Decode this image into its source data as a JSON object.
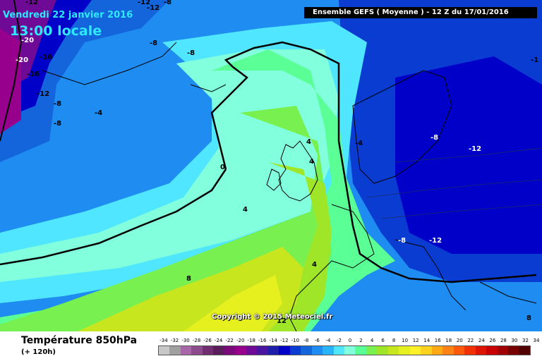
{
  "header": {
    "date": "Vendredi 22 janvier 2016",
    "time": "13:00 locale",
    "run": "Ensemble GEFS  ( Moyenne )  -  12 Z du 17/01/2016"
  },
  "footer": {
    "field": "Température 850hPa",
    "lead": "(+ 120h)"
  },
  "copyright": "Copyright © 2015 Meteociel.fr",
  "legend": {
    "labels": [
      "-34",
      "-32",
      "-30",
      "-28",
      "-26",
      "-24",
      "-22",
      "-20",
      "-18",
      "-16",
      "-14",
      "-12",
      "-10",
      "-8",
      "-6",
      "-4",
      "-2",
      "0",
      "2",
      "4",
      "6",
      "8",
      "10",
      "12",
      "14",
      "16",
      "18",
      "20",
      "22",
      "24",
      "26",
      "28",
      "30",
      "32",
      "34"
    ],
    "colors": [
      "#c8c8c8",
      "#a0a0a0",
      "#a868a8",
      "#8c4c8c",
      "#702e70",
      "#5a1e5a",
      "#7a0a7a",
      "#96008c",
      "#6e0a96",
      "#4b14a0",
      "#1e1eaa",
      "#0000c8",
      "#0a3cd2",
      "#1464dc",
      "#1e8cf0",
      "#28b4fa",
      "#50e6ff",
      "#82ffdc",
      "#5aff96",
      "#78f050",
      "#a0e628",
      "#c8e61e",
      "#e6f01e",
      "#fff028",
      "#ffd21e",
      "#ffaa14",
      "#ff8214",
      "#ff5a0a",
      "#f03200",
      "#dc1400",
      "#c80000",
      "#a00000",
      "#780000",
      "#500000"
    ]
  },
  "isolines": [
    {
      "text": "-12"
    },
    {
      "text": "-20"
    },
    {
      "text": "-16"
    },
    {
      "text": "-20"
    },
    {
      "text": "-16"
    },
    {
      "text": "-12"
    },
    {
      "text": "-8"
    },
    {
      "text": "-8"
    },
    {
      "text": "-8"
    },
    {
      "text": "-4"
    },
    {
      "text": "-8"
    },
    {
      "text": "-12"
    },
    {
      "text": "-8"
    },
    {
      "text": "0"
    },
    {
      "text": "4"
    },
    {
      "text": "4"
    },
    {
      "text": "4"
    },
    {
      "text": "8"
    },
    {
      "text": "4"
    },
    {
      "text": "-4"
    },
    {
      "text": "-8"
    },
    {
      "text": "-12"
    },
    {
      "text": "-8"
    },
    {
      "text": "-12"
    },
    {
      "text": "8"
    },
    {
      "text": "-12"
    },
    {
      "text": "-1"
    },
    {
      "text": "12"
    }
  ]
}
